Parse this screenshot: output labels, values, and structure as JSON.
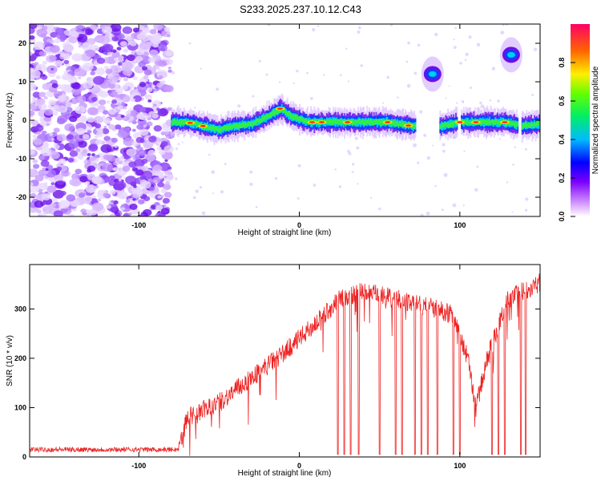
{
  "title": "S233.2025.237.10.12.C43",
  "chart_data": [
    {
      "type": "heatmap",
      "xlabel": "Height of straight line (km)",
      "ylabel": "Frequency (Hz)",
      "xlim": [
        -168,
        150
      ],
      "ylim": [
        -25,
        25
      ],
      "xticks": [
        -100,
        0,
        100
      ],
      "yticks": [
        -20,
        -10,
        0,
        10,
        20
      ],
      "colorbar": {
        "label": "Normalized spectral amplitude",
        "range": [
          0,
          1
        ],
        "ticks": [
          0.0,
          0.2,
          0.4,
          0.6,
          0.8
        ]
      },
      "signal_track": [
        {
          "x": -80,
          "y": -0.5
        },
        {
          "x": -70,
          "y": -0.5
        },
        {
          "x": -60,
          "y": -1.5
        },
        {
          "x": -50,
          "y": -2.5
        },
        {
          "x": -42,
          "y": -1.5
        },
        {
          "x": -30,
          "y": -1.0
        },
        {
          "x": -20,
          "y": 1.0
        },
        {
          "x": -12,
          "y": 3.0
        },
        {
          "x": -5,
          "y": 1.0
        },
        {
          "x": 5,
          "y": -0.5
        },
        {
          "x": 30,
          "y": -0.5
        },
        {
          "x": 55,
          "y": -0.5
        },
        {
          "x": 70,
          "y": -1.5
        },
        {
          "x": 88,
          "y": -1.5
        },
        {
          "x": 100,
          "y": -0.5
        },
        {
          "x": 128,
          "y": -0.5
        },
        {
          "x": 138,
          "y": -1.5
        },
        {
          "x": 150,
          "y": -1.0
        }
      ],
      "secondary_features": [
        {
          "x": 83,
          "y": 12
        },
        {
          "x": 132,
          "y": 17
        }
      ]
    },
    {
      "type": "line",
      "xlabel": "Height of straight line (km)",
      "ylabel": "SNR (10 * v/v)",
      "xlim": [
        -168,
        150
      ],
      "ylim": [
        0,
        390
      ],
      "xticks": [
        -100,
        0,
        100
      ],
      "yticks": [
        0,
        100,
        200,
        300
      ],
      "series": [
        {
          "color": "#ee2222",
          "trend": [
            {
              "x": -168,
              "y": 15
            },
            {
              "x": -75,
              "y": 15
            },
            {
              "x": -70,
              "y": 80
            },
            {
              "x": -50,
              "y": 110
            },
            {
              "x": -30,
              "y": 160
            },
            {
              "x": -10,
              "y": 210
            },
            {
              "x": 10,
              "y": 270
            },
            {
              "x": 25,
              "y": 320
            },
            {
              "x": 40,
              "y": 335
            },
            {
              "x": 60,
              "y": 320
            },
            {
              "x": 75,
              "y": 310
            },
            {
              "x": 95,
              "y": 290
            },
            {
              "x": 105,
              "y": 200
            },
            {
              "x": 110,
              "y": 100
            },
            {
              "x": 118,
              "y": 210
            },
            {
              "x": 130,
              "y": 320
            },
            {
              "x": 150,
              "y": 355
            }
          ],
          "dropouts_x": [
            24,
            28,
            32,
            37,
            50,
            60,
            64,
            72,
            76,
            80,
            86,
            96,
            100,
            120,
            124,
            128,
            138,
            141
          ]
        }
      ]
    }
  ]
}
